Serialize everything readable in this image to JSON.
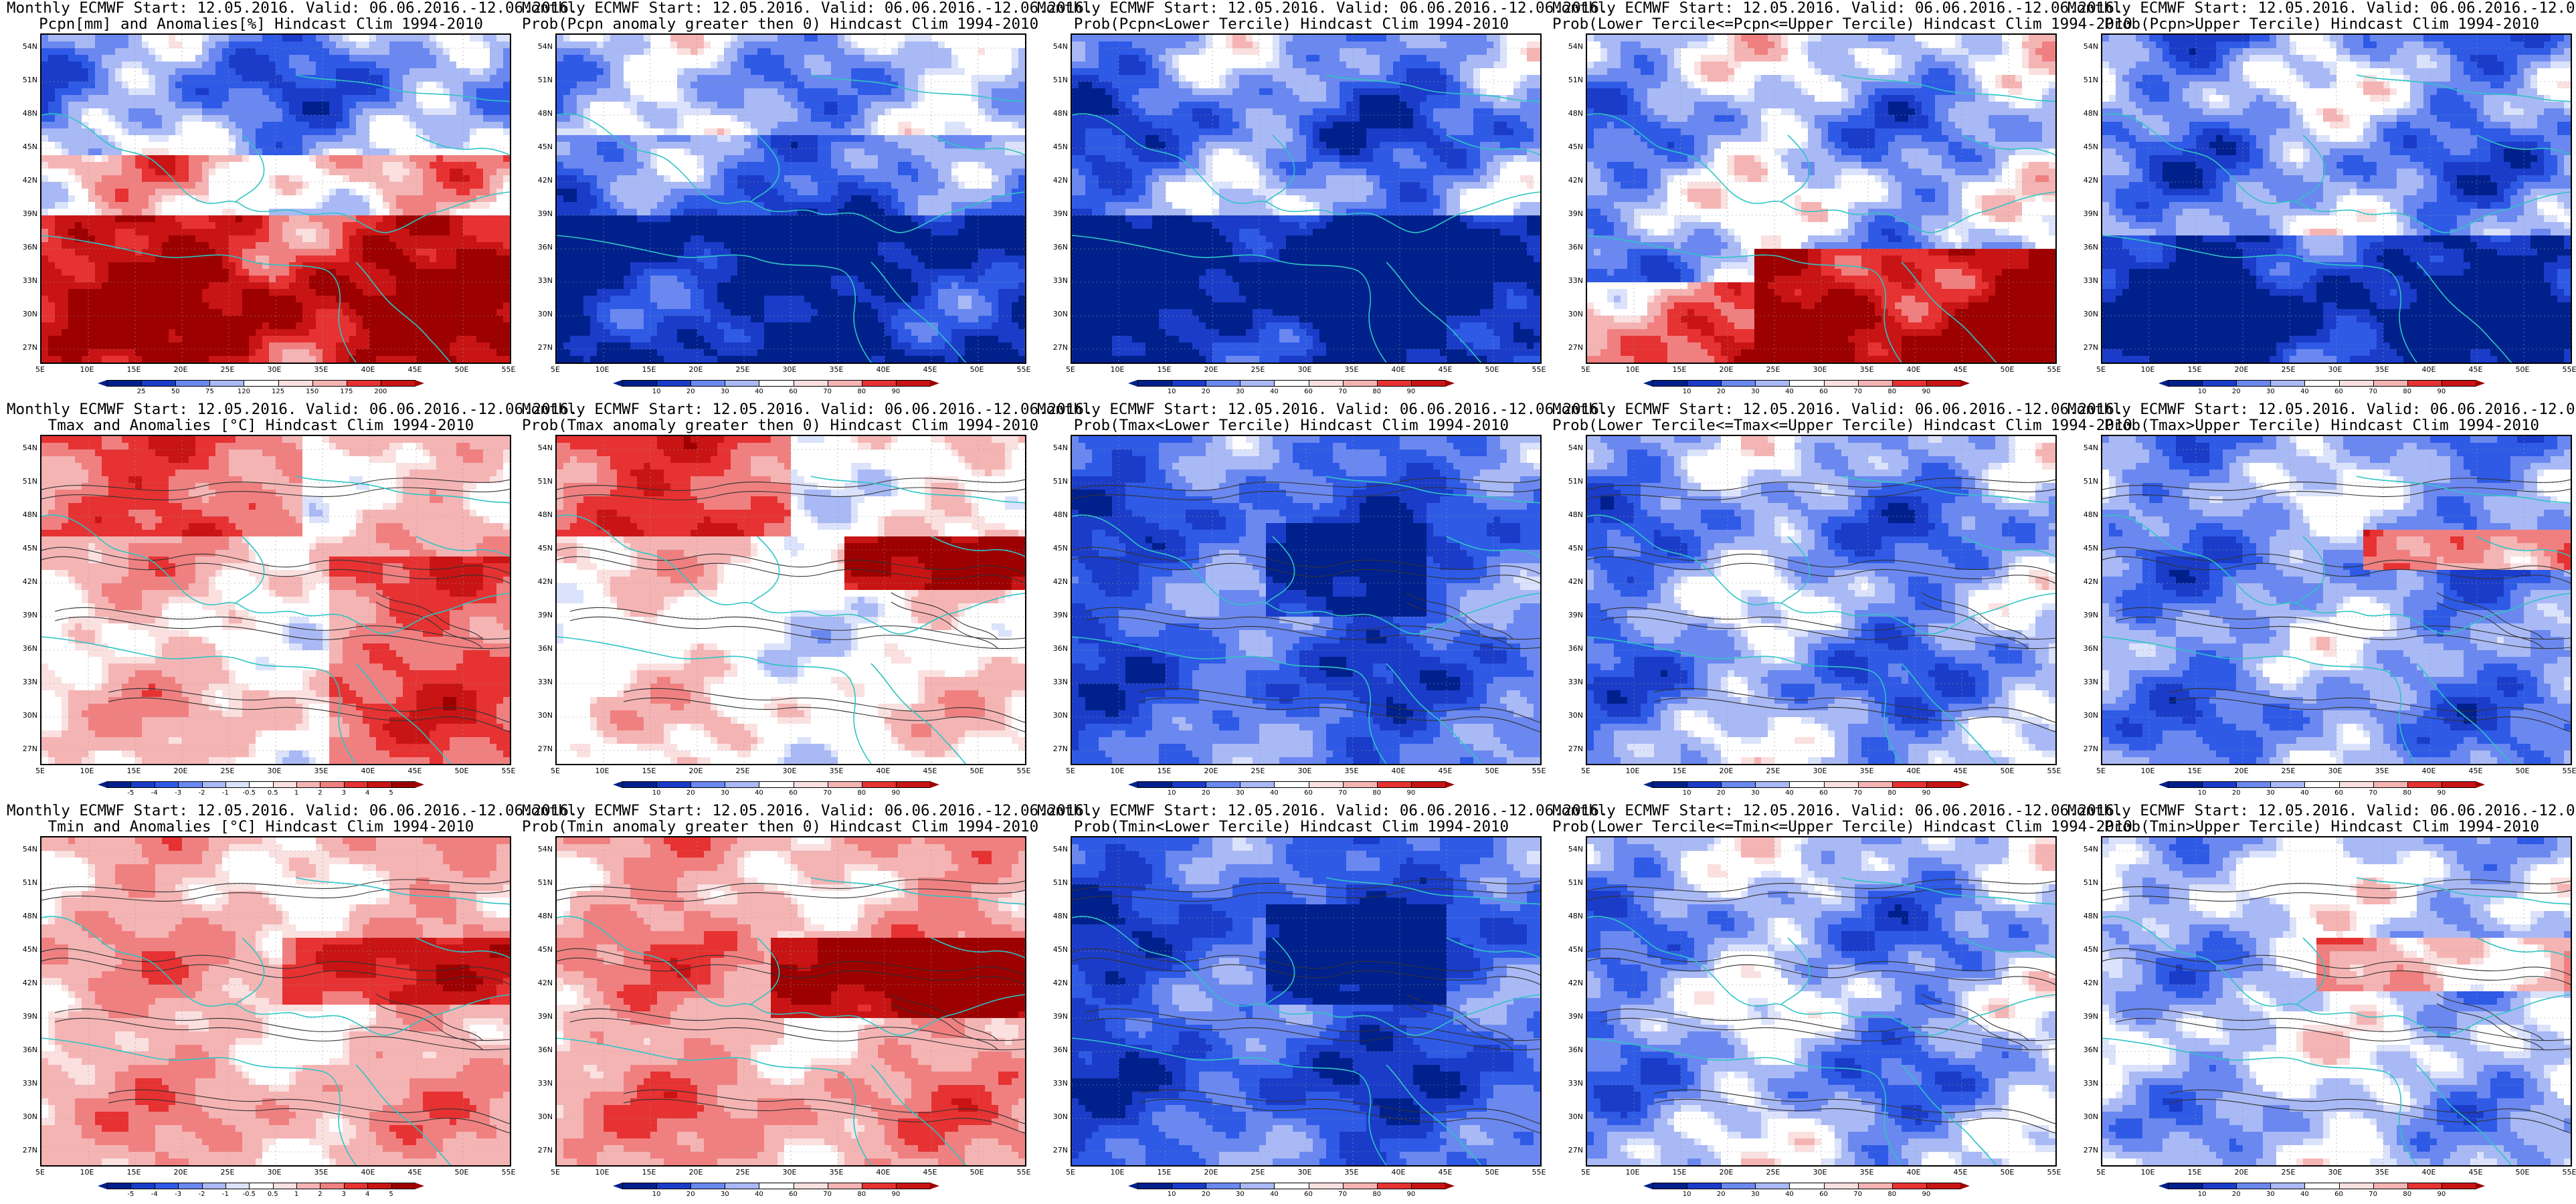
{
  "header_line": "Monthly ECMWF Start: 12.05.2016. Valid: 06.06.2016.-12.06.2016.",
  "lat_labels": [
    "54N",
    "51N",
    "48N",
    "45N",
    "42N",
    "39N",
    "36N",
    "33N",
    "30N",
    "27N"
  ],
  "lon_labels": [
    "5E",
    "10E",
    "15E",
    "20E",
    "25E",
    "30E",
    "35E",
    "40E",
    "45E",
    "50E",
    "55E"
  ],
  "colors": {
    "coast": "#2ec4c4",
    "contour": "#333333",
    "blue_dark": "#00208c",
    "blue_mid": "#2e5ae6",
    "blue_light": "#a9b9f5",
    "red_dark": "#9c0000",
    "red_mid": "#e63232",
    "red_light": "#f5b4b4"
  },
  "colorbars": {
    "pcpn_anom": {
      "labels": [
        "25",
        "50",
        "75",
        "120",
        "125",
        "150",
        "175",
        "200"
      ],
      "scheme": "diverging"
    },
    "prob": {
      "labels": [
        "10",
        "20",
        "30",
        "40",
        "60",
        "70",
        "80",
        "90"
      ],
      "scheme": "diverging"
    },
    "temp_anom": {
      "labels": [
        "-5",
        "-4",
        "-3",
        "-2",
        "-1",
        "-0.5",
        "0.5",
        "1",
        "2",
        "3",
        "4",
        "5"
      ],
      "scheme": "diverging"
    }
  },
  "panels": [
    {
      "title": "Pcpn[mm] and Anomalies[%] Hindcast Clim 1994-2010",
      "field": "pcpn_anom",
      "colorbar": "pcpn_anom",
      "contours": false
    },
    {
      "title": "Prob(Pcpn anomaly greater then 0) Hindcast Clim 1994-2010",
      "field": "pcpn_pgt0",
      "colorbar": "prob",
      "contours": false
    },
    {
      "title": "Prob(Pcpn<Lower Tercile) Hindcast Clim 1994-2010",
      "field": "pcpn_low",
      "colorbar": "prob",
      "contours": false
    },
    {
      "title": "Prob(Lower Tercile<=Pcpn<=Upper Tercile) Hindcast Clim 1994-2010",
      "field": "pcpn_mid",
      "colorbar": "prob",
      "contours": false
    },
    {
      "title": "Prob(Pcpn>Upper Tercile) Hindcast Clim 1994-2010",
      "field": "pcpn_up",
      "colorbar": "prob",
      "contours": false
    },
    {
      "title": "Tmax and Anomalies [°C] Hindcast Clim 1994-2010",
      "field": "tmax_anom",
      "colorbar": "temp_anom",
      "contours": true
    },
    {
      "title": "Prob(Tmax anomaly greater then 0) Hindcast Clim 1994-2010",
      "field": "tmax_pgt0",
      "colorbar": "prob",
      "contours": true
    },
    {
      "title": "Prob(Tmax<Lower Tercile) Hindcast Clim 1994-2010",
      "field": "tmax_low",
      "colorbar": "prob",
      "contours": true
    },
    {
      "title": "Prob(Lower Tercile<=Tmax<=Upper Tercile) Hindcast Clim 1994-2010",
      "field": "tmax_mid",
      "colorbar": "prob",
      "contours": true
    },
    {
      "title": "Prob(Tmax>Upper Tercile) Hindcast Clim 1994-2010",
      "field": "tmax_up",
      "colorbar": "prob",
      "contours": true
    },
    {
      "title": "Tmin and Anomalies [°C] Hindcast Clim 1994-2010",
      "field": "tmin_anom",
      "colorbar": "temp_anom",
      "contours": true
    },
    {
      "title": "Prob(Tmin anomaly greater then 0) Hindcast Clim 1994-2010",
      "field": "tmin_pgt0",
      "colorbar": "prob",
      "contours": true
    },
    {
      "title": "Prob(Tmin<Lower Tercile) Hindcast Clim 1994-2010",
      "field": "tmin_low",
      "colorbar": "prob",
      "contours": true
    },
    {
      "title": "Prob(Lower Tercile<=Tmin<=Upper Tercile) Hindcast Clim 1994-2010",
      "field": "tmin_mid",
      "colorbar": "prob",
      "contours": true
    },
    {
      "title": "Prob(Tmin>Upper Tercile) Hindcast Clim 1994-2010",
      "field": "tmin_up",
      "colorbar": "prob",
      "contours": true
    }
  ]
}
